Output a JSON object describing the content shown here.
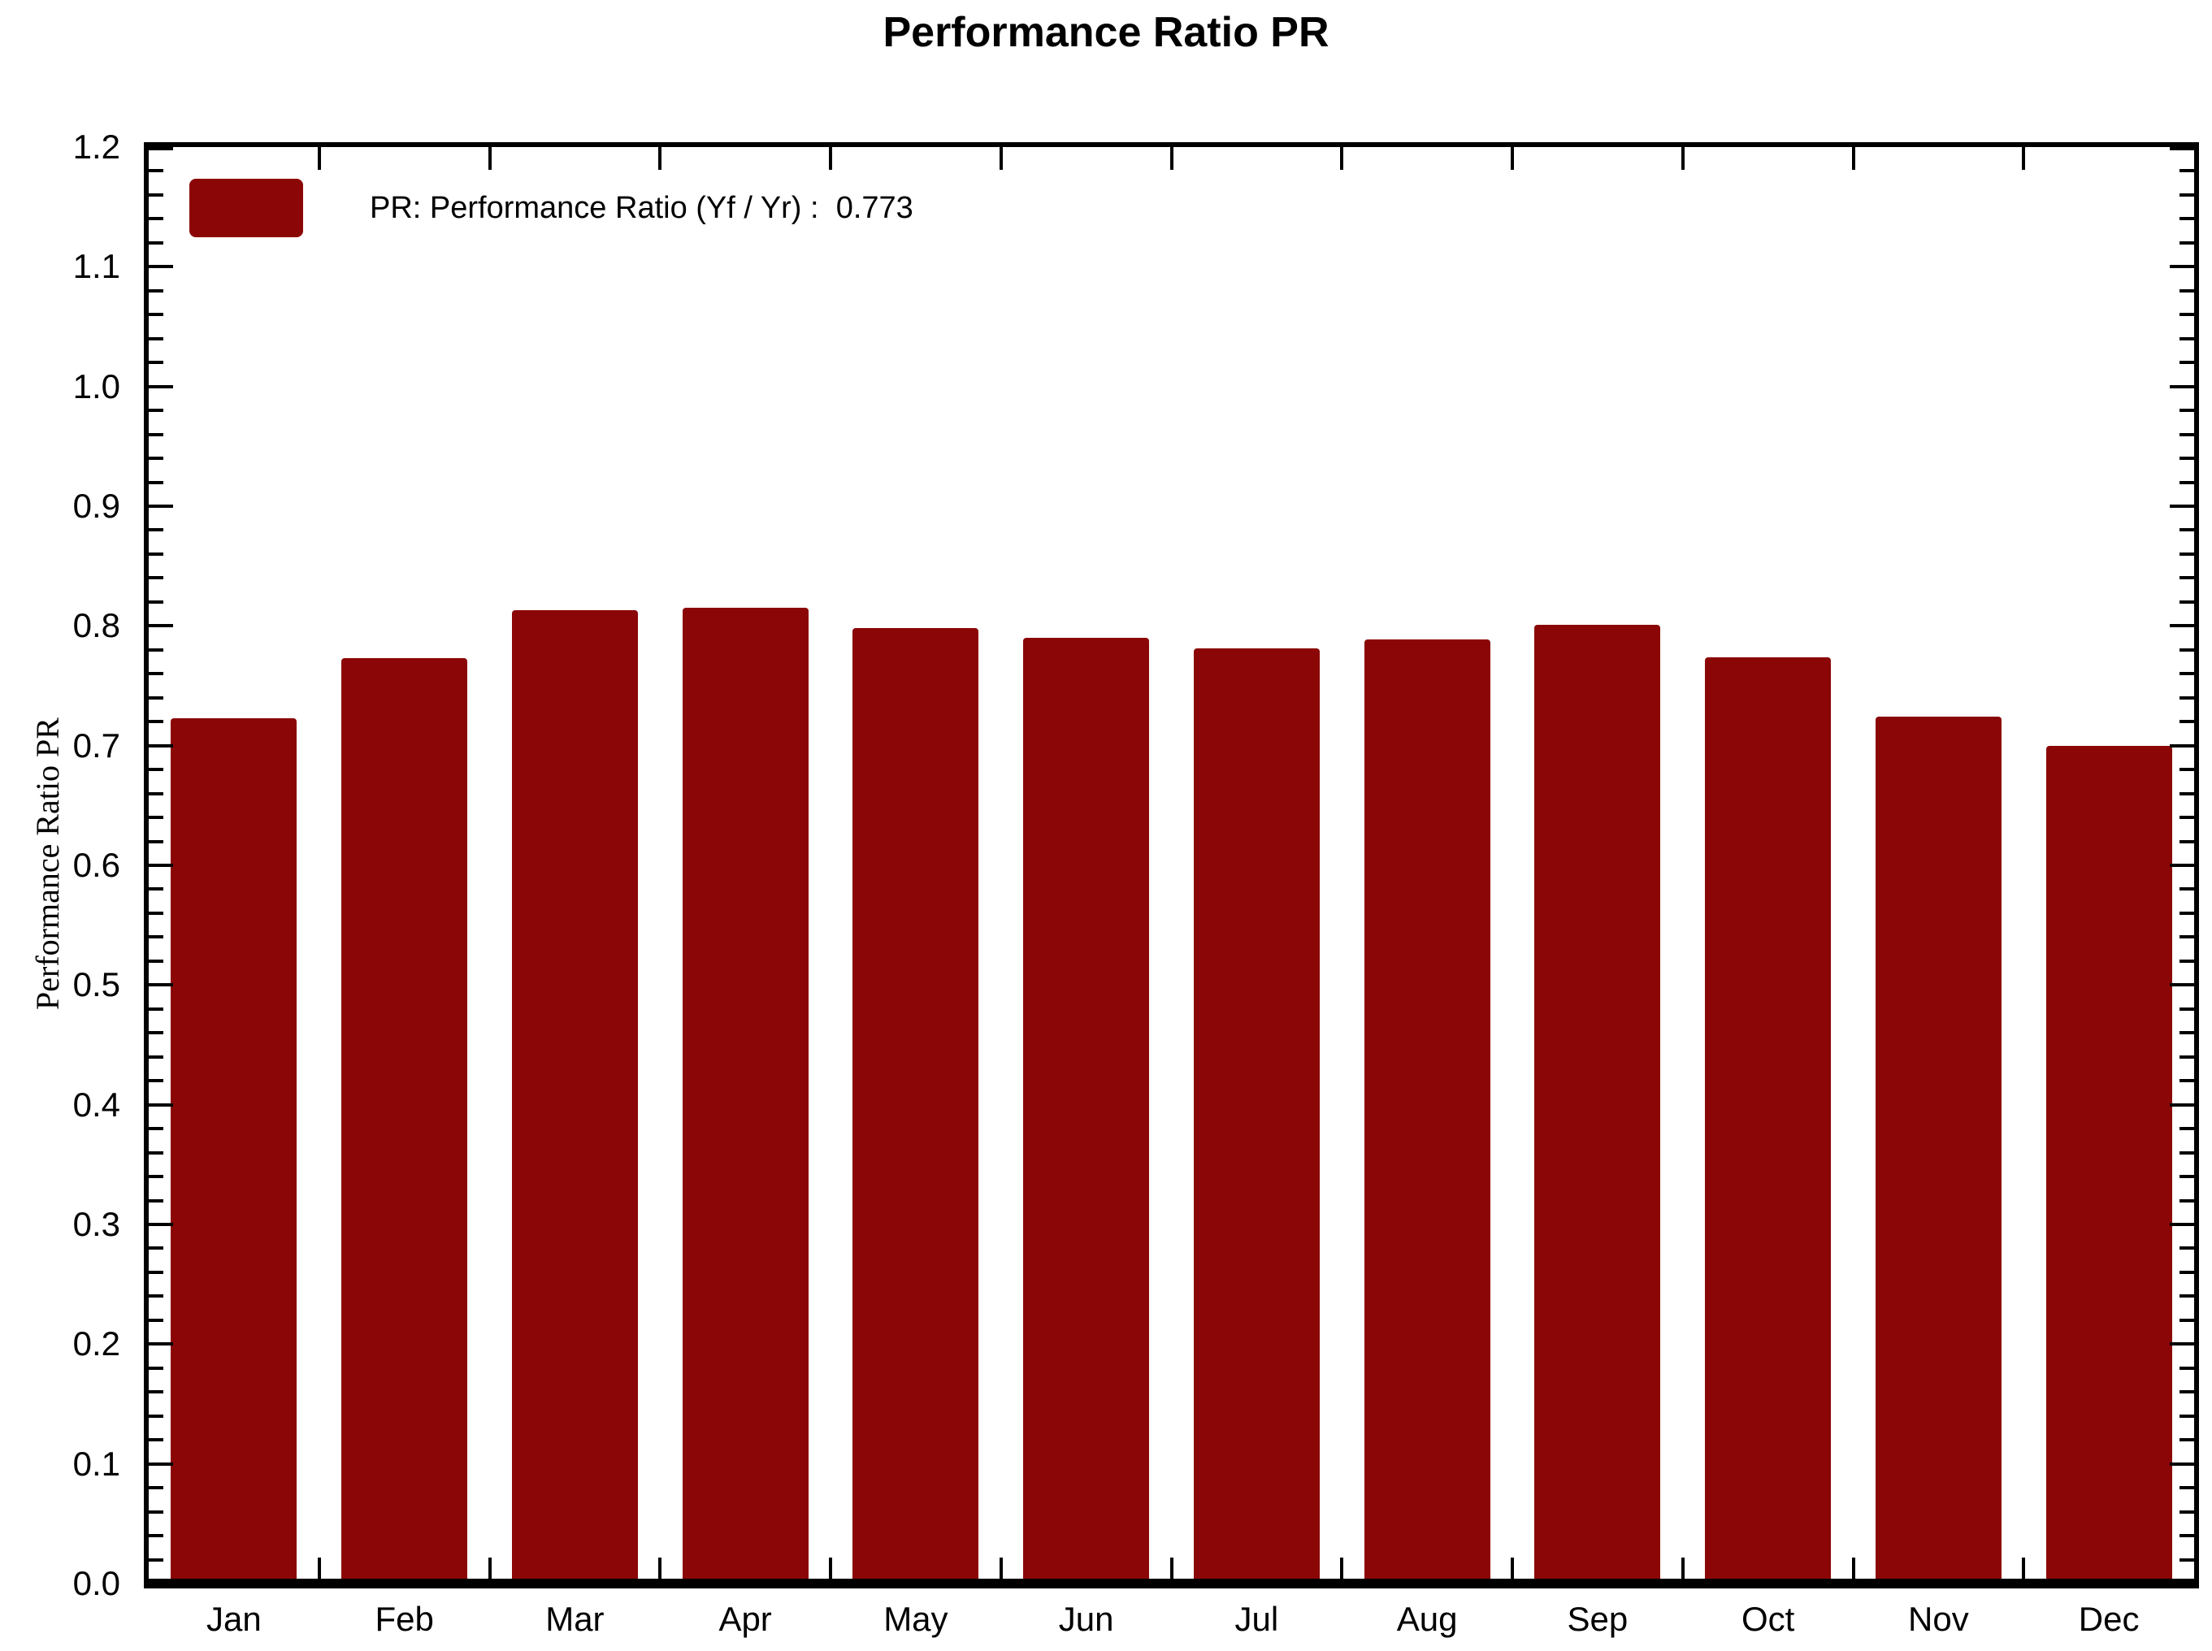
{
  "chart_data": {
    "type": "bar",
    "title": "Performance Ratio PR",
    "ylabel": "Performance Ratio PR",
    "xlabel": "",
    "categories": [
      "Jan",
      "Feb",
      "Mar",
      "Apr",
      "May",
      "Jun",
      "Jul",
      "Aug",
      "Sep",
      "Oct",
      "Nov",
      "Dec"
    ],
    "series": [
      {
        "name": "PR: Performance Ratio (Yf / Yr)",
        "values": [
          0.723,
          0.773,
          0.813,
          0.815,
          0.798,
          0.79,
          0.781,
          0.789,
          0.801,
          0.774,
          0.724,
          0.7
        ]
      }
    ],
    "annual_value": "0.773",
    "legend_label": "PR: Performance Ratio (Yf / Yr) :  0.773",
    "legend_position": "top-left",
    "ylim": [
      0.0,
      1.2
    ],
    "ytick_step": 0.1,
    "ytick_minor_step": 0.02,
    "ytick_labels": [
      "1.2",
      "1.1",
      "1.0",
      "0.9",
      "0.8",
      "0.7",
      "0.6",
      "0.5",
      "0.4",
      "0.3",
      "0.2",
      "0.1",
      "0.0"
    ],
    "grid": false,
    "legend": [
      "PR: Performance Ratio (Yf / Yr) :  0.773"
    ],
    "bar_color": "#8B0707",
    "axis_color": "#000000",
    "background_color": "#FFFFFF"
  }
}
